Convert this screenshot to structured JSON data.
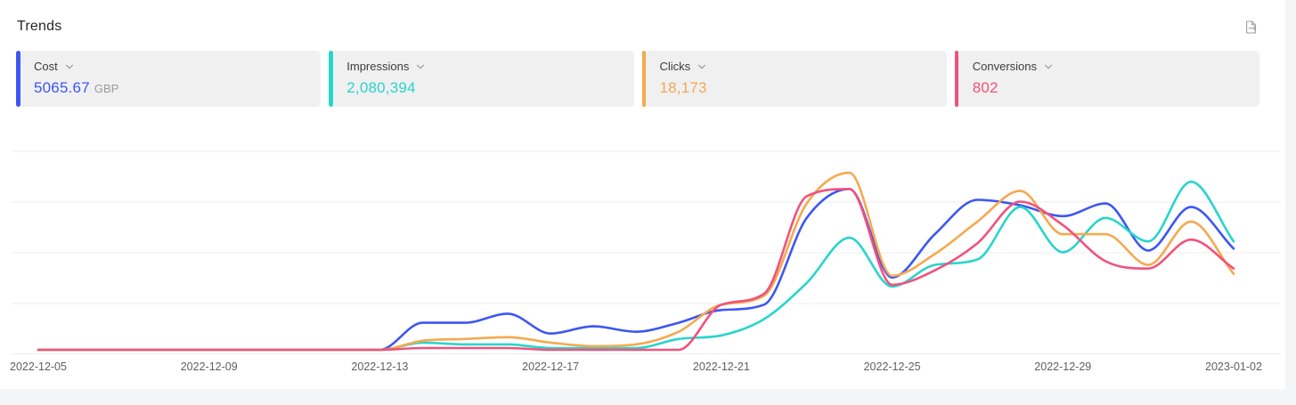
{
  "panel": {
    "title": "Trends",
    "export_icon": "file-export-icon"
  },
  "cards": [
    {
      "id": "cost",
      "label": "Cost",
      "value": "5065.67",
      "unit": "GBP",
      "color": "#3d57f2",
      "icon": "chevron-down-icon"
    },
    {
      "id": "impressions",
      "label": "Impressions",
      "value": "2,080,394",
      "unit": "",
      "color": "#28d5cb",
      "icon": "chevron-down-icon"
    },
    {
      "id": "clicks",
      "label": "Clicks",
      "value": "18,173",
      "unit": "",
      "color": "#f5a94f",
      "icon": "chevron-down-icon"
    },
    {
      "id": "conversions",
      "label": "Conversions",
      "value": "802",
      "unit": "",
      "color": "#f0527c",
      "icon": "chevron-down-icon"
    }
  ],
  "chart_data": {
    "type": "line",
    "title": "",
    "xlabel": "",
    "ylabel": "",
    "grid": "horizontal",
    "legend": "none",
    "y_axis": "hidden; each series independently normalized, values are relative units 0-100",
    "x": [
      "2022-12-05",
      "2022-12-06",
      "2022-12-07",
      "2022-12-08",
      "2022-12-09",
      "2022-12-10",
      "2022-12-11",
      "2022-12-12",
      "2022-12-13",
      "2022-12-14",
      "2022-12-15",
      "2022-12-16",
      "2022-12-17",
      "2022-12-18",
      "2022-12-19",
      "2022-12-20",
      "2022-12-21",
      "2022-12-22",
      "2022-12-23",
      "2022-12-24",
      "2022-12-25",
      "2022-12-26",
      "2022-12-27",
      "2022-12-28",
      "2022-12-29",
      "2022-12-30",
      "2022-12-31",
      "2023-01-01",
      "2023-01-02"
    ],
    "x_tick_labels": [
      "2022-12-05",
      "2022-12-09",
      "2022-12-13",
      "2022-12-17",
      "2022-12-21",
      "2022-12-25",
      "2022-12-29",
      "2023-01-02"
    ],
    "series": [
      {
        "name": "Cost",
        "color": "#3d57f2",
        "values": [
          0,
          0,
          0,
          0,
          0,
          0,
          0,
          0,
          0,
          15,
          15,
          20,
          9,
          13,
          10,
          15,
          22,
          25,
          73,
          89,
          40,
          64,
          83,
          80,
          74,
          81,
          55,
          79,
          56
        ]
      },
      {
        "name": "Impressions",
        "color": "#28d5cb",
        "values": [
          0,
          0,
          0,
          0,
          0,
          0,
          0,
          0,
          0,
          4,
          3,
          3,
          1,
          1,
          1,
          6,
          8,
          17,
          37,
          62,
          35,
          47,
          50,
          79,
          54,
          73,
          60,
          93,
          60
        ]
      },
      {
        "name": "Clicks",
        "color": "#f5a94f",
        "values": [
          0,
          0,
          0,
          0,
          0,
          0,
          0,
          0,
          0,
          5,
          6,
          7,
          4,
          2,
          3,
          10,
          25,
          30,
          81,
          98,
          41,
          53,
          71,
          88,
          64,
          64,
          47,
          71,
          42
        ]
      },
      {
        "name": "Conversions",
        "color": "#f0527c",
        "values": [
          0,
          0,
          0,
          0,
          0,
          0,
          0,
          0,
          0,
          1,
          1,
          1,
          0,
          0,
          0,
          0,
          25,
          31,
          85,
          89,
          36,
          44,
          59,
          82,
          69,
          49,
          45,
          61,
          45
        ]
      }
    ],
    "style": {
      "grid_color": "#ededed",
      "tick_label_color": "#5f5f5f"
    }
  }
}
